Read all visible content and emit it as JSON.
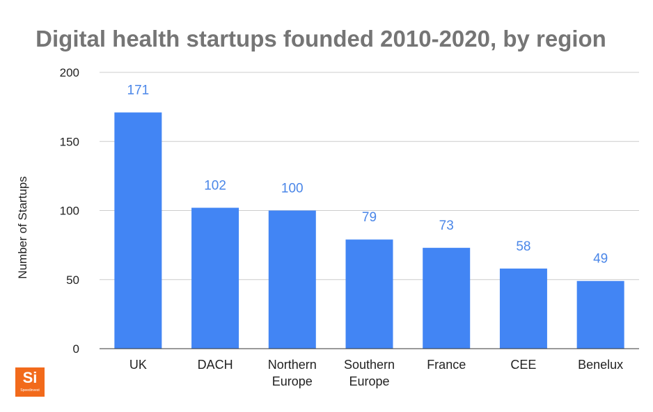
{
  "chart_data": {
    "type": "bar",
    "title": "Digital health startups founded 2010-2020, by region",
    "xlabel": "",
    "ylabel": "Number of Startups",
    "categories": [
      [
        "UK"
      ],
      [
        "DACH"
      ],
      [
        "Northern",
        "Europe"
      ],
      [
        "Southern",
        "Europe"
      ],
      [
        "France"
      ],
      [
        "CEE"
      ],
      [
        "Benelux"
      ]
    ],
    "values": [
      171,
      102,
      100,
      79,
      73,
      58,
      49
    ],
    "ylim": [
      0,
      200
    ],
    "yticks": [
      0,
      50,
      100,
      150,
      200
    ],
    "grid": true,
    "data_labels": true,
    "colors": {
      "bar": "#4285f4",
      "data_label": "#4a86e8",
      "title": "#757575",
      "axis_text": "#222222",
      "grid": "#cccccc",
      "baseline": "#333333"
    }
  },
  "logo": {
    "mark": "Si",
    "text": "Speedinvest",
    "color": "#f26a1b"
  }
}
